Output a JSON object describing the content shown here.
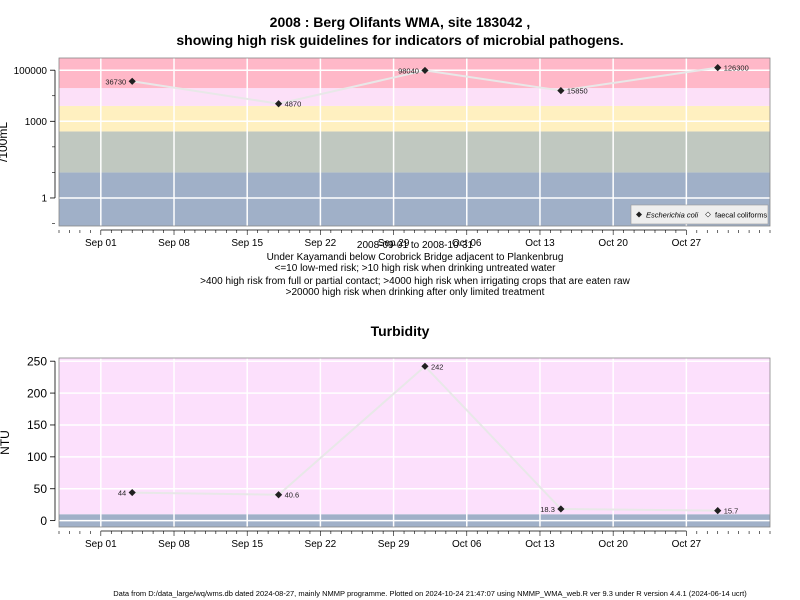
{
  "title": {
    "line1": "2008 : Berg Olifants WMA, site 183042 ,",
    "line2": "showing high risk guidelines for indicators of microbial pathogens."
  },
  "caption": {
    "line1": "2008-09-01 to 2008-10-31",
    "line2": "Under Kayamandi below Corobrick Bridge adjacent to Plankenbrug",
    "line3": "<=10 low-med risk; >10 high risk when drinking untreated water",
    "line4": ">400 high risk from full or partial contact; >4000 high risk when irrigating crops that are eaten raw",
    "line5": ">20000 high risk when drinking after only limited treatment"
  },
  "footnote": "Data from D:/data_large/wq/wms.db dated 2024-08-27, mainly NMMP programme. Plotted on 2024-10-24 21:47:07 using NMMP_WMA_web.R ver 9.3 under R version 4.4.1 (2024-06-14 ucrt)",
  "colors": {
    "band_blue": "#a0b0c8",
    "band_green": "#c0c8c0",
    "band_yellow": "#fff0c0",
    "band_lightpink": "#fce0f8",
    "band_pink": "#ffb8c8",
    "turbidity_bg": "#fce0fc",
    "turbidity_low": "#a0b0c8",
    "line": "#e8e8e8",
    "point": "#202020"
  },
  "chart_data": [
    {
      "type": "line",
      "ylabel": "/100mL",
      "yscale": "log",
      "ylim": [
        0.08,
        300000
      ],
      "yticks": [
        {
          "value": 1,
          "label": "1"
        },
        {
          "value": 1000,
          "label": "1000"
        },
        {
          "value": 100000,
          "label": "100000"
        }
      ],
      "xlim": [
        "2008-08-28",
        "2008-11-04"
      ],
      "xticks": [
        {
          "date": "2008-09-01",
          "label": "Sep 01"
        },
        {
          "date": "2008-09-08",
          "label": "Sep 08"
        },
        {
          "date": "2008-09-15",
          "label": "Sep 15"
        },
        {
          "date": "2008-09-22",
          "label": "Sep 22"
        },
        {
          "date": "2008-09-29",
          "label": "Sep 29"
        },
        {
          "date": "2008-10-06",
          "label": "Oct 06"
        },
        {
          "date": "2008-10-13",
          "label": "Oct 13"
        },
        {
          "date": "2008-10-20",
          "label": "Oct 20"
        },
        {
          "date": "2008-10-27",
          "label": "Oct 27"
        }
      ],
      "bands": [
        {
          "from": 0.08,
          "to": 10,
          "color": "band_blue"
        },
        {
          "from": 10,
          "to": 400,
          "color": "band_green"
        },
        {
          "from": 400,
          "to": 4000,
          "color": "band_yellow"
        },
        {
          "from": 4000,
          "to": 20000,
          "color": "band_lightpink"
        },
        {
          "from": 20000,
          "to": 300000,
          "color": "band_pink"
        }
      ],
      "legend": {
        "position": "bottom-right",
        "entries": [
          "Escherichia coli",
          "faecal coliforms"
        ]
      },
      "series": [
        {
          "name": "Escherichia coli",
          "points": [
            {
              "x": "2008-09-04",
              "y": 36730,
              "label": "36730",
              "label_side": "left"
            },
            {
              "x": "2008-09-18",
              "y": 4870,
              "label": "4870",
              "label_side": "right"
            },
            {
              "x": "2008-10-02",
              "y": 98040,
              "label": "98040",
              "label_side": "left"
            },
            {
              "x": "2008-10-15",
              "y": 15850,
              "label": "15850",
              "label_side": "right"
            },
            {
              "x": "2008-10-30",
              "y": 126300,
              "label": "126300",
              "label_side": "right"
            }
          ]
        }
      ]
    },
    {
      "type": "line",
      "title": "Turbidity",
      "ylabel": "NTU",
      "ylim": [
        -10,
        255
      ],
      "yticks": [
        {
          "value": 0,
          "label": "0"
        },
        {
          "value": 50,
          "label": "50"
        },
        {
          "value": 100,
          "label": "100"
        },
        {
          "value": 150,
          "label": "150"
        },
        {
          "value": 200,
          "label": "200"
        },
        {
          "value": 250,
          "label": "250"
        }
      ],
      "xlim": [
        "2008-08-28",
        "2008-11-04"
      ],
      "xticks": [
        {
          "date": "2008-09-01",
          "label": "Sep 01"
        },
        {
          "date": "2008-09-08",
          "label": "Sep 08"
        },
        {
          "date": "2008-09-15",
          "label": "Sep 15"
        },
        {
          "date": "2008-09-22",
          "label": "Sep 22"
        },
        {
          "date": "2008-09-29",
          "label": "Sep 29"
        },
        {
          "date": "2008-10-06",
          "label": "Oct 06"
        },
        {
          "date": "2008-10-13",
          "label": "Oct 13"
        },
        {
          "date": "2008-10-20",
          "label": "Oct 20"
        },
        {
          "date": "2008-10-27",
          "label": "Oct 27"
        }
      ],
      "bands": [
        {
          "from": -10,
          "to": 10,
          "color": "turbidity_low"
        },
        {
          "from": 10,
          "to": 255,
          "color": "turbidity_bg"
        }
      ],
      "series": [
        {
          "points": [
            {
              "x": "2008-09-04",
              "y": 44,
              "label": "44",
              "label_side": "left"
            },
            {
              "x": "2008-09-18",
              "y": 40.6,
              "label": "40.6",
              "label_side": "right"
            },
            {
              "x": "2008-10-02",
              "y": 242,
              "label": "242",
              "label_side": "right"
            },
            {
              "x": "2008-10-15",
              "y": 18.3,
              "label": "18.3",
              "label_side": "left"
            },
            {
              "x": "2008-10-30",
              "y": 15.7,
              "label": "15.7",
              "label_side": "right"
            }
          ]
        }
      ]
    }
  ]
}
